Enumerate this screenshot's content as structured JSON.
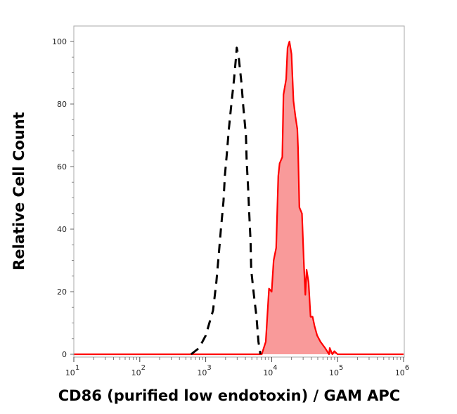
{
  "chart_data": {
    "type": "area",
    "title": "",
    "xlabel": "CD86 (purified low endotoxin) / GAM APC",
    "ylabel": "Relative Cell Count",
    "xscale": "log",
    "xlim": [
      10,
      1000000
    ],
    "ylim": [
      0,
      100
    ],
    "grid": false,
    "legend": "none",
    "x_ticks": [
      {
        "base": "10",
        "exp": "1",
        "value": 10
      },
      {
        "base": "10",
        "exp": "2",
        "value": 100
      },
      {
        "base": "10",
        "exp": "3",
        "value": 1000
      },
      {
        "base": "10",
        "exp": "4",
        "value": 10000
      },
      {
        "base": "10",
        "exp": "5",
        "value": 100000
      },
      {
        "base": "10",
        "exp": "6",
        "value": 1000000
      }
    ],
    "y_ticks": [
      "0",
      "20",
      "40",
      "60",
      "80",
      "100"
    ],
    "series": [
      {
        "style": "dashed-line",
        "color": "#000000",
        "x": [
          600,
          794,
          1000,
          1290,
          1450,
          1580,
          1700,
          1860,
          1950,
          2090,
          2240,
          2450,
          2690,
          2880,
          2950,
          3160,
          3470,
          3720,
          4070,
          4170,
          4370,
          4570,
          4790,
          4900,
          5370,
          5890,
          6310,
          6760
        ],
        "y": [
          0,
          2,
          6,
          14,
          23,
          32,
          40,
          49,
          57,
          64,
          72,
          80,
          88,
          95,
          98,
          95,
          87,
          79,
          70,
          62,
          54,
          45,
          36,
          27,
          19,
          12,
          4,
          0
        ]
      },
      {
        "style": "filled-area",
        "color": "#ff0000",
        "fill": "#f99a9a",
        "x": [
          10,
          7080,
          8130,
          9120,
          10000,
          10700,
          11700,
          12600,
          13200,
          14500,
          15100,
          16600,
          17400,
          18600,
          20000,
          21400,
          22900,
          24500,
          25100,
          26300,
          28800,
          30900,
          32400,
          33900,
          36300,
          38900,
          41700,
          44700,
          49000,
          55000,
          64600,
          74100,
          75900,
          83200,
          89100,
          100000,
          1000000
        ],
        "y": [
          0,
          0,
          4,
          21,
          20,
          30,
          34,
          57,
          61,
          63,
          83,
          88,
          98,
          100,
          96,
          81,
          76,
          72,
          66,
          47,
          45,
          28,
          19,
          27,
          23,
          12,
          12,
          9,
          6,
          4,
          2,
          0,
          2,
          0,
          1,
          0,
          0
        ]
      }
    ]
  }
}
